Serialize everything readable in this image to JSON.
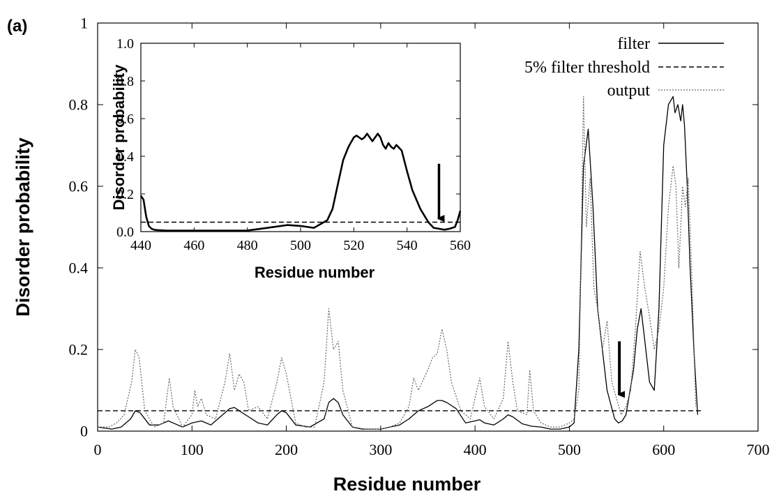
{
  "panel_label": "(a)",
  "chart_data": [
    {
      "type": "line",
      "xlabel": "Residue number",
      "ylabel": "Disorder probability",
      "xlim": [
        0,
        700
      ],
      "ylim": [
        0,
        1
      ],
      "xticks": [
        "0",
        "100",
        "200",
        "300",
        "400",
        "500",
        "600",
        "700"
      ],
      "yticks": [
        "0",
        "0.2",
        "0.4",
        "0.6",
        "0.8",
        "1"
      ],
      "grid": false,
      "legend_position": "top-right",
      "series": [
        {
          "name": "filter",
          "style": "solid",
          "color": "#000000",
          "x": [
            0,
            15,
            25,
            35,
            40,
            45,
            55,
            65,
            75,
            80,
            90,
            100,
            110,
            120,
            130,
            140,
            145,
            150,
            160,
            170,
            180,
            190,
            195,
            200,
            210,
            225,
            240,
            245,
            250,
            255,
            260,
            270,
            280,
            300,
            310,
            320,
            330,
            340,
            350,
            360,
            365,
            370,
            380,
            390,
            400,
            405,
            410,
            420,
            430,
            435,
            440,
            450,
            460,
            470,
            480,
            490,
            500,
            505,
            510,
            515,
            520,
            525,
            530,
            540,
            548,
            552,
            556,
            560,
            568,
            572,
            576,
            580,
            585,
            590,
            595,
            600,
            605,
            610,
            612,
            615,
            618,
            620,
            622,
            625,
            628,
            632,
            636
          ],
          "y": [
            0.01,
            0.005,
            0.01,
            0.03,
            0.05,
            0.045,
            0.015,
            0.015,
            0.025,
            0.02,
            0.01,
            0.02,
            0.025,
            0.015,
            0.035,
            0.055,
            0.058,
            0.05,
            0.035,
            0.02,
            0.015,
            0.04,
            0.05,
            0.045,
            0.015,
            0.01,
            0.03,
            0.07,
            0.08,
            0.07,
            0.04,
            0.01,
            0.005,
            0.005,
            0.01,
            0.015,
            0.03,
            0.05,
            0.06,
            0.075,
            0.075,
            0.07,
            0.055,
            0.02,
            0.025,
            0.028,
            0.02,
            0.015,
            0.03,
            0.04,
            0.035,
            0.018,
            0.012,
            0.01,
            0.005,
            0.005,
            0.01,
            0.02,
            0.2,
            0.65,
            0.74,
            0.55,
            0.3,
            0.1,
            0.03,
            0.02,
            0.025,
            0.04,
            0.15,
            0.25,
            0.3,
            0.22,
            0.12,
            0.1,
            0.3,
            0.7,
            0.8,
            0.82,
            0.78,
            0.8,
            0.76,
            0.8,
            0.75,
            0.6,
            0.4,
            0.2,
            0.04
          ]
        },
        {
          "name": "5% filter threshold",
          "style": "dashed",
          "color": "#000000",
          "x": [
            0,
            640
          ],
          "y": [
            0.05,
            0.05
          ]
        },
        {
          "name": "output",
          "style": "dotted",
          "color": "#666666",
          "x": [
            0,
            12,
            20,
            28,
            36,
            40,
            44,
            50,
            60,
            70,
            76,
            80,
            90,
            100,
            103,
            106,
            110,
            115,
            125,
            135,
            140,
            145,
            150,
            155,
            160,
            170,
            180,
            190,
            195,
            200,
            210,
            220,
            230,
            240,
            245,
            250,
            255,
            260,
            270,
            285,
            300,
            310,
            320,
            330,
            335,
            340,
            350,
            355,
            360,
            365,
            370,
            375,
            385,
            395,
            400,
            405,
            410,
            420,
            430,
            435,
            440,
            445,
            455,
            458,
            462,
            470,
            480,
            490,
            500,
            505,
            510,
            515,
            518,
            522,
            526,
            530,
            535,
            540,
            545,
            550,
            555,
            560,
            565,
            570,
            575,
            580,
            585,
            590,
            595,
            600,
            605,
            610,
            613,
            616,
            620,
            623,
            626,
            630,
            634
          ],
          "y": [
            0.01,
            0.01,
            0.02,
            0.04,
            0.12,
            0.2,
            0.18,
            0.05,
            0.01,
            0.02,
            0.13,
            0.06,
            0.01,
            0.04,
            0.1,
            0.06,
            0.08,
            0.04,
            0.03,
            0.12,
            0.19,
            0.1,
            0.14,
            0.12,
            0.05,
            0.06,
            0.03,
            0.12,
            0.18,
            0.14,
            0.02,
            0.01,
            0.01,
            0.12,
            0.3,
            0.2,
            0.22,
            0.1,
            0.01,
            0.005,
            0.005,
            0.01,
            0.02,
            0.06,
            0.13,
            0.1,
            0.15,
            0.18,
            0.19,
            0.25,
            0.2,
            0.12,
            0.05,
            0.03,
            0.08,
            0.13,
            0.06,
            0.03,
            0.08,
            0.22,
            0.12,
            0.05,
            0.04,
            0.15,
            0.05,
            0.02,
            0.01,
            0.01,
            0.02,
            0.03,
            0.1,
            0.82,
            0.5,
            0.62,
            0.35,
            0.3,
            0.2,
            0.27,
            0.12,
            0.08,
            0.04,
            0.06,
            0.1,
            0.25,
            0.44,
            0.35,
            0.28,
            0.2,
            0.25,
            0.35,
            0.55,
            0.65,
            0.6,
            0.4,
            0.6,
            0.55,
            0.62,
            0.37,
            0.06
          ]
        }
      ]
    },
    {
      "type": "line",
      "xlabel": "Residue number",
      "ylabel": "Disorder probability",
      "xlim": [
        440,
        560
      ],
      "ylim": [
        0,
        1
      ],
      "xticks": [
        "440",
        "460",
        "480",
        "500",
        "520",
        "540",
        "560"
      ],
      "yticks": [
        "0.0",
        "0.2",
        "0.4",
        "0.6",
        "0.8",
        "1.0"
      ],
      "grid": false,
      "series": [
        {
          "style": "solid",
          "color": "#000000",
          "x": [
            440,
            441,
            442,
            443,
            444,
            445,
            446,
            450,
            460,
            470,
            480,
            485,
            490,
            495,
            500,
            505,
            510,
            512,
            514,
            516,
            518,
            520,
            521,
            522,
            523,
            524,
            525,
            526,
            527,
            528,
            529,
            530,
            531,
            532,
            533,
            534,
            535,
            536,
            538,
            540,
            542,
            545,
            548,
            550,
            552,
            554,
            556,
            557,
            558,
            559,
            560
          ],
          "y": [
            0.19,
            0.17,
            0.08,
            0.03,
            0.015,
            0.01,
            0.008,
            0.005,
            0.005,
            0.005,
            0.006,
            0.015,
            0.025,
            0.035,
            0.03,
            0.02,
            0.06,
            0.12,
            0.25,
            0.38,
            0.45,
            0.5,
            0.51,
            0.5,
            0.49,
            0.5,
            0.52,
            0.5,
            0.48,
            0.5,
            0.52,
            0.5,
            0.46,
            0.44,
            0.47,
            0.45,
            0.44,
            0.46,
            0.43,
            0.32,
            0.22,
            0.12,
            0.05,
            0.02,
            0.015,
            0.01,
            0.015,
            0.02,
            0.025,
            0.06,
            0.11
          ]
        },
        {
          "style": "dashed",
          "color": "#000000",
          "x": [
            440,
            560
          ],
          "y": [
            0.05,
            0.05
          ]
        }
      ]
    }
  ],
  "annotations": {
    "main_arrow": {
      "x": 553,
      "y_from": 0.22,
      "y_to": 0.09
    },
    "inset_arrow": {
      "x": 552,
      "y_from": 0.36,
      "y_to": 0.07
    }
  }
}
